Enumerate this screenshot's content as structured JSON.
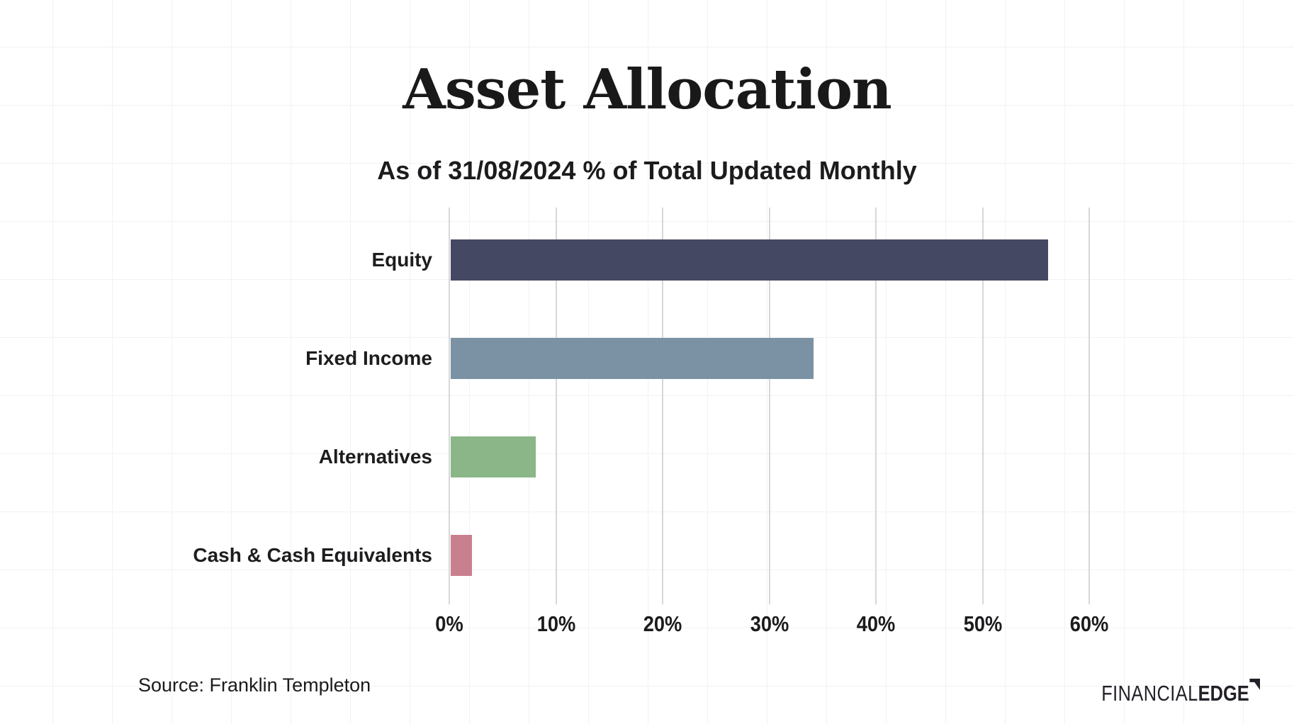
{
  "header": {
    "title": "Asset Allocation",
    "subtitle": "As of 31/08/2024 % of Total Updated Monthly"
  },
  "chart_data": {
    "type": "bar",
    "orientation": "horizontal",
    "title": "Asset Allocation",
    "subtitle": "As of 31/08/2024 % of Total Updated Monthly",
    "categories": [
      "Equity",
      "Fixed Income",
      "Alternatives",
      "Cash & Cash Equivalents"
    ],
    "values": [
      56,
      34,
      8,
      2
    ],
    "unit": "%",
    "bar_colors": [
      "#454862",
      "#7A92A3",
      "#8BB687",
      "#C9808E"
    ],
    "xlabel": "",
    "ylabel": "",
    "xlim": [
      0,
      60
    ],
    "x_ticks": [
      {
        "label": "0%",
        "value": 0
      },
      {
        "label": "10%",
        "value": 10
      },
      {
        "label": "20%",
        "value": 20
      },
      {
        "label": "30%",
        "value": 30
      },
      {
        "label": "40%",
        "value": 40
      },
      {
        "label": "50%",
        "value": 50
      },
      {
        "label": "60%",
        "value": 60
      }
    ],
    "grid": "vertical-gridlines-on",
    "legend": "none"
  },
  "footer": {
    "source": "Source: Franklin Templeton",
    "logo_light": "FINANCIAL",
    "logo_bold": "EDGE"
  },
  "colors": {
    "background": "#ffffff",
    "background_grid_line": "#f2f2f5",
    "axis_gridline": "#d7d7da",
    "text": "#1d1d1f"
  }
}
